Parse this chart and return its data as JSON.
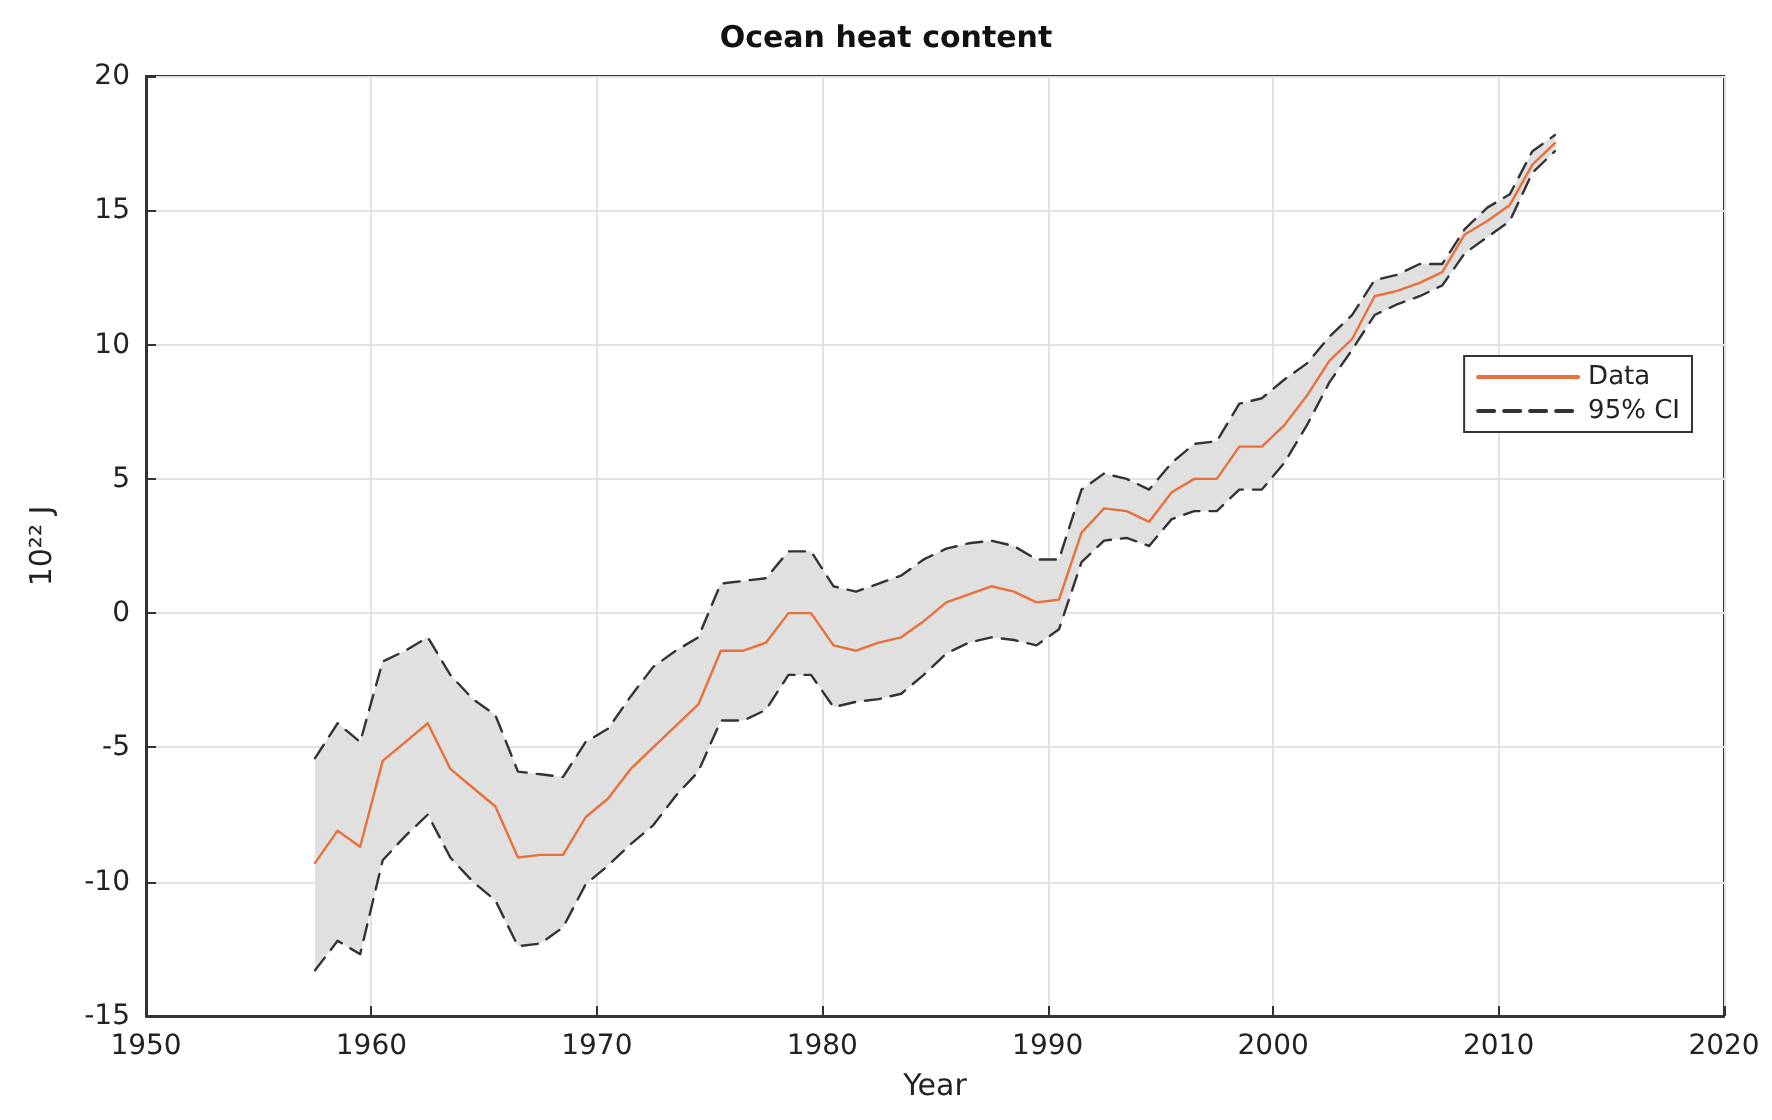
{
  "chart_data": {
    "type": "line",
    "title": "Ocean heat content",
    "xlabel": "Year",
    "ylabel": "10²² J",
    "x": [
      1957.5,
      1958.5,
      1959.5,
      1960.5,
      1961.5,
      1962.5,
      1963.5,
      1964.5,
      1965.5,
      1966.5,
      1967.5,
      1968.5,
      1969.5,
      1970.5,
      1971.5,
      1972.5,
      1973.5,
      1974.5,
      1975.5,
      1976.5,
      1977.5,
      1978.5,
      1979.5,
      1980.5,
      1981.5,
      1982.5,
      1983.5,
      1984.5,
      1985.5,
      1986.5,
      1987.5,
      1988.5,
      1989.5,
      1990.5,
      1991.5,
      1992.5,
      1993.5,
      1994.5,
      1995.5,
      1996.5,
      1997.5,
      1998.5,
      1999.5,
      2000.5,
      2001.5,
      2002.5,
      2003.5,
      2004.5,
      2005.5,
      2006.5,
      2007.5,
      2008.5,
      2009.5,
      2010.5,
      2011.5,
      2012.5
    ],
    "series": [
      {
        "name": "Data",
        "color": "#e8703a",
        "line_style": "solid",
        "values": [
          -9.3,
          -8.1,
          -8.7,
          -5.5,
          -4.8,
          -4.1,
          -5.8,
          -6.5,
          -7.2,
          -9.1,
          -9.0,
          -9.0,
          -7.6,
          -6.9,
          -5.8,
          -5.0,
          -4.2,
          -3.4,
          -1.4,
          -1.4,
          -1.1,
          0.0,
          0.0,
          -1.2,
          -1.4,
          -1.1,
          -0.9,
          -0.3,
          0.4,
          0.7,
          1.0,
          0.8,
          0.4,
          0.5,
          3.0,
          3.9,
          3.8,
          3.4,
          4.5,
          5.0,
          5.0,
          6.2,
          6.2,
          7.0,
          8.1,
          9.4,
          10.2,
          11.8,
          12.0,
          12.3,
          12.7,
          14.1,
          14.6,
          15.2,
          16.7,
          17.5
        ],
        "lower": [
          -13.3,
          -12.2,
          -12.7,
          -9.2,
          -8.3,
          -7.5,
          -9.1,
          -10.0,
          -10.7,
          -12.4,
          -12.3,
          -11.7,
          -10.1,
          -9.4,
          -8.6,
          -7.9,
          -6.8,
          -5.9,
          -4.0,
          -4.0,
          -3.6,
          -2.3,
          -2.3,
          -3.5,
          -3.3,
          -3.2,
          -3.0,
          -2.3,
          -1.5,
          -1.1,
          -0.9,
          -1.0,
          -1.2,
          -0.6,
          1.9,
          2.7,
          2.8,
          2.5,
          3.5,
          3.8,
          3.8,
          4.6,
          4.6,
          5.6,
          7.0,
          8.6,
          9.8,
          11.1,
          11.5,
          11.8,
          12.2,
          13.4,
          14.0,
          14.6,
          16.4,
          17.2
        ],
        "upper": [
          -5.4,
          -4.1,
          -4.8,
          -1.8,
          -1.4,
          -0.9,
          -2.3,
          -3.2,
          -3.8,
          -5.9,
          -6.0,
          -6.1,
          -4.8,
          -4.3,
          -3.1,
          -2.0,
          -1.4,
          -0.9,
          1.1,
          1.2,
          1.3,
          2.3,
          2.3,
          1.0,
          0.8,
          1.1,
          1.4,
          2.0,
          2.4,
          2.6,
          2.7,
          2.5,
          2.0,
          2.0,
          4.6,
          5.2,
          5.0,
          4.6,
          5.6,
          6.3,
          6.4,
          7.8,
          8.0,
          8.7,
          9.3,
          10.3,
          11.1,
          12.4,
          12.6,
          13.0,
          13.0,
          14.3,
          15.1,
          15.6,
          17.2,
          17.8
        ]
      },
      {
        "name": "95% CI",
        "color": "#333333",
        "line_style": "dashed",
        "values": [
          -5.4,
          -4.1,
          -4.8,
          -1.8,
          -1.4,
          -0.9,
          -2.3,
          -3.2,
          -3.8,
          -5.9,
          -6.0,
          -6.1,
          -4.8,
          -4.3,
          -3.1,
          -2.0,
          -1.4,
          -0.9,
          1.1,
          1.2,
          1.3,
          2.3,
          2.3,
          1.0,
          0.8,
          1.1,
          1.4,
          2.0,
          2.4,
          2.6,
          2.7,
          2.5,
          2.0,
          2.0,
          4.6,
          5.2,
          5.0,
          4.6,
          5.6,
          6.3,
          6.4,
          7.8,
          8.0,
          8.7,
          9.3,
          10.3,
          11.1,
          12.4,
          12.6,
          13.0,
          13.0,
          14.3,
          15.1,
          15.6,
          17.2,
          17.8
        ]
      },
      {
        "color": "#333333",
        "line_style": "dashed",
        "values": [
          -13.3,
          -12.2,
          -12.7,
          -9.2,
          -8.3,
          -7.5,
          -9.1,
          -10.0,
          -10.7,
          -12.4,
          -12.3,
          -11.7,
          -10.1,
          -9.4,
          -8.6,
          -7.9,
          -6.8,
          -5.9,
          -4.0,
          -4.0,
          -3.6,
          -2.3,
          -2.3,
          -3.5,
          -3.3,
          -3.2,
          -3.0,
          -2.3,
          -1.5,
          -1.1,
          -0.9,
          -1.0,
          -1.2,
          -0.6,
          1.9,
          2.7,
          2.8,
          2.5,
          3.5,
          3.8,
          3.8,
          4.6,
          4.6,
          5.6,
          7.0,
          8.6,
          9.8,
          11.1,
          11.5,
          11.8,
          12.2,
          13.4,
          14.0,
          14.6,
          16.4,
          17.2
        ]
      }
    ],
    "xlim": [
      1950,
      2020
    ],
    "xticks": [
      1950,
      1960,
      1970,
      1980,
      1990,
      2000,
      2010,
      2020
    ],
    "ylim": [
      -15,
      20
    ],
    "yticks": [
      -15,
      -10,
      -5,
      0,
      5,
      10,
      15,
      20
    ],
    "grid": true,
    "legend": "right",
    "marker": "none"
  }
}
